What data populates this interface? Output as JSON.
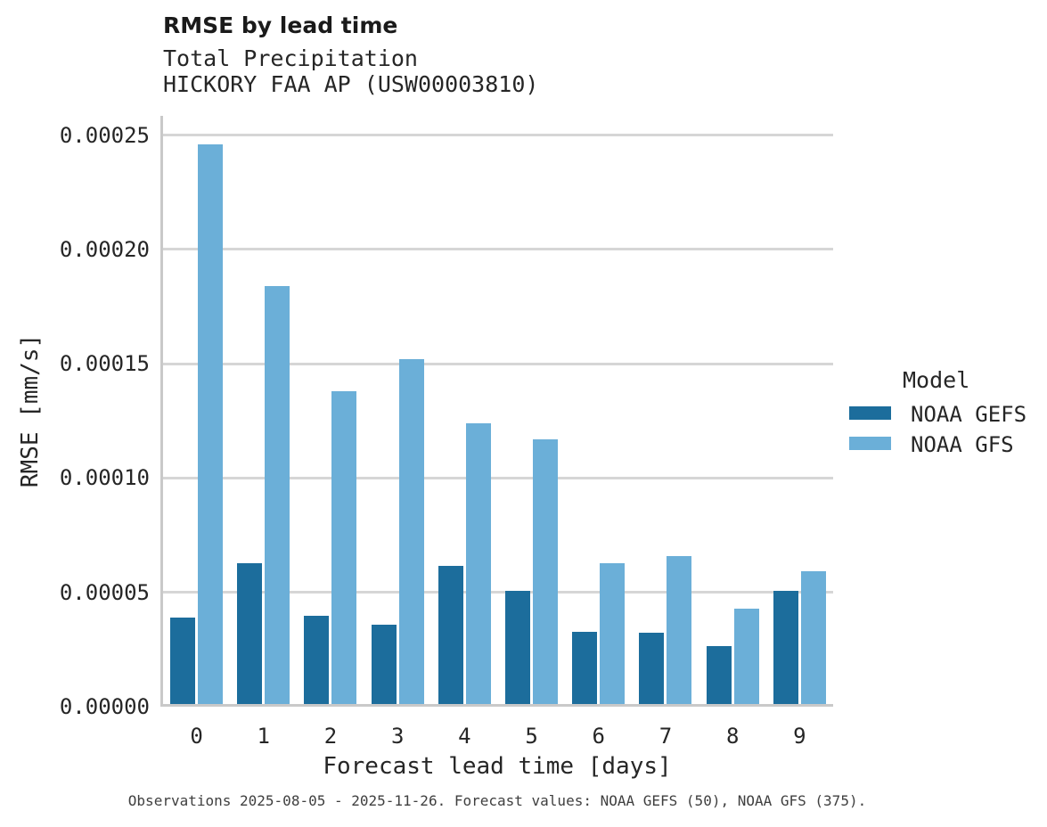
{
  "header": {
    "title": "RMSE by lead time",
    "subtitle_line1": "Total Precipitation",
    "subtitle_line2": "HICKORY FAA AP (USW00003810)"
  },
  "chart_data": {
    "type": "bar",
    "title": "RMSE by lead time",
    "subtitle": [
      "Total Precipitation",
      "HICKORY FAA AP (USW00003810)"
    ],
    "categories": [
      "0",
      "1",
      "2",
      "3",
      "4",
      "5",
      "6",
      "7",
      "8",
      "9"
    ],
    "series": [
      {
        "name": "NOAA GEFS",
        "color": "#1c6d9c",
        "values": [
          3.91e-05,
          6.26e-05,
          3.97e-05,
          3.57e-05,
          6.16e-05,
          5.05e-05,
          3.26e-05,
          3.22e-05,
          2.64e-05,
          5.05e-05
        ]
      },
      {
        "name": "NOAA GFS",
        "color": "#6bafd8",
        "values": [
          0.000246,
          0.000184,
          0.000138,
          0.000152,
          0.000124,
          0.000117,
          6.26e-05,
          6.59e-05,
          4.28e-05,
          5.92e-05
        ]
      }
    ],
    "xlabel": "Forecast lead time [days]",
    "ylabel": "RMSE [mm/s]",
    "ylim": [
      0,
      0.00026
    ],
    "yticks": [
      {
        "value": 0.0,
        "label": "0.00000"
      },
      {
        "value": 5e-05,
        "label": "0.00005"
      },
      {
        "value": 0.0001,
        "label": "0.00010"
      },
      {
        "value": 0.00015,
        "label": "0.00015"
      },
      {
        "value": 0.0002,
        "label": "0.00020"
      },
      {
        "value": 0.00025,
        "label": "0.00025"
      }
    ],
    "grid": true,
    "legend": {
      "title": "Model",
      "position": "right"
    }
  },
  "legend": {
    "title": "Model"
  },
  "caption": "Observations 2025-08-05 - 2025-11-26. Forecast values: NOAA GEFS (50), NOAA GFS (375)."
}
